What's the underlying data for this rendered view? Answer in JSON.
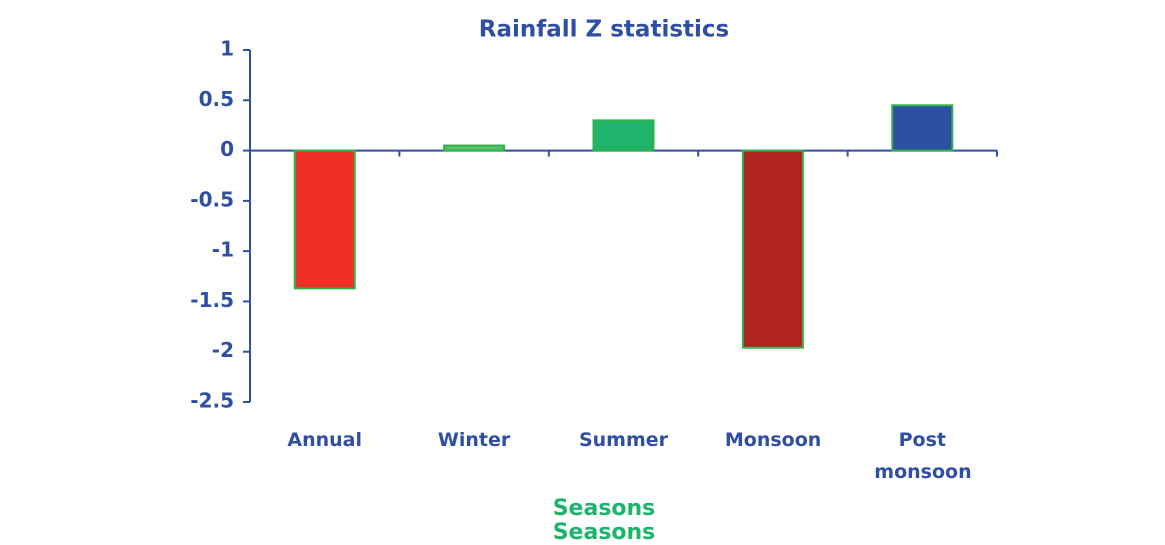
{
  "chart_data": {
    "type": "bar",
    "title": "Rainfall Z statistics",
    "xlabel": "Seasons",
    "categories": [
      "Annual",
      "Winter",
      "Summer",
      "Monsoon",
      "Post monsoon"
    ],
    "values": [
      -1.37,
      0.05,
      0.3,
      -1.96,
      0.45
    ],
    "colors": [
      "#ee3124",
      "#5bbf6b",
      "#1fb36b",
      "#b0231f",
      "#2e4fa3"
    ],
    "ylim": [
      -2.5,
      1
    ],
    "yticks": [
      1,
      0.5,
      0,
      -0.5,
      -1,
      -1.5,
      -2,
      -2.5
    ],
    "grid": false
  }
}
